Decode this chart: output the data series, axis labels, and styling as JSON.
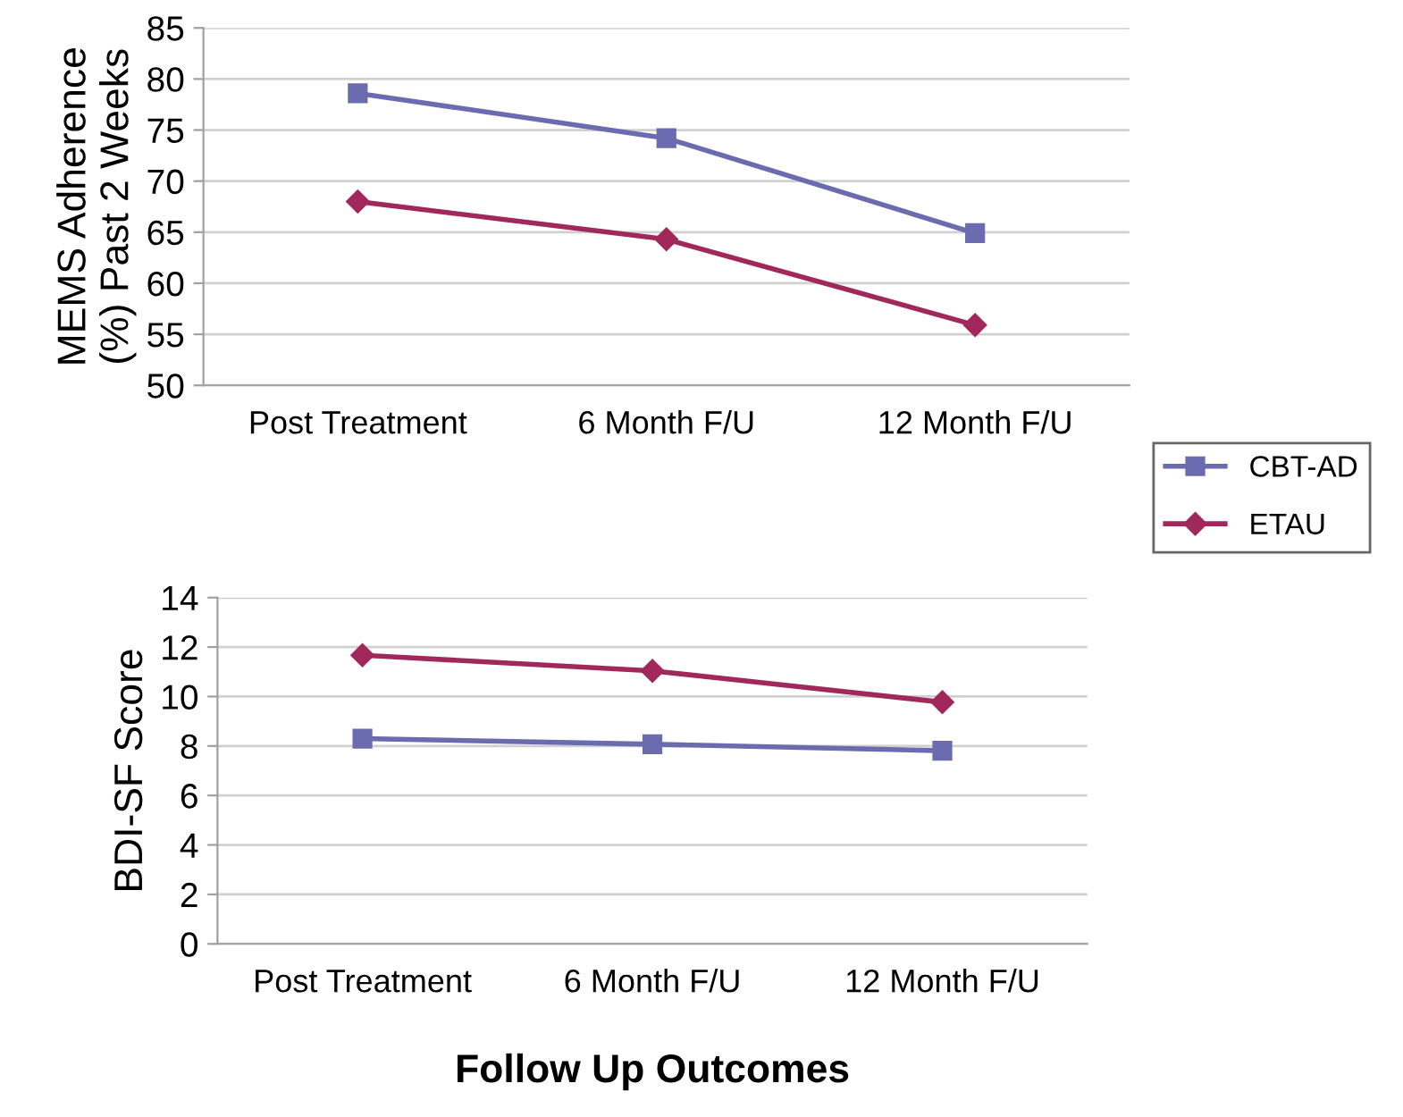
{
  "chart_data": [
    {
      "type": "line",
      "ylabel": "MEMS Adherence\n(%) Past 2 Weeks",
      "categories": [
        "Post Treatment",
        "6 Month F/U",
        "12 Month F/U"
      ],
      "series": [
        {
          "name": "CBT-AD",
          "color": "#6b6bb0",
          "marker": "square",
          "values": [
            78.6,
            74.2,
            64.9
          ]
        },
        {
          "name": "ETAU",
          "color": "#a0285a",
          "marker": "diamond",
          "values": [
            68.0,
            64.3,
            55.9
          ]
        }
      ],
      "ylim": [
        50,
        85
      ],
      "yticks": [
        50,
        55,
        60,
        65,
        70,
        75,
        80,
        85
      ],
      "grid": "y",
      "legend": "right"
    },
    {
      "type": "line",
      "ylabel": "BDI-SF Score",
      "xlabel": "Follow Up Outcomes",
      "categories": [
        "Post Treatment",
        "6 Month F/U",
        "12 Month F/U"
      ],
      "series": [
        {
          "color": "#a0285a",
          "marker": "diamond",
          "values": [
            11.67,
            11.04,
            9.77
          ]
        },
        {
          "color": "#6b6bb0",
          "marker": "square",
          "values": [
            8.3,
            8.07,
            7.81
          ]
        }
      ],
      "ylim": [
        0,
        14
      ],
      "yticks": [
        0,
        2,
        4,
        6,
        8,
        10,
        12,
        14
      ],
      "grid": "y"
    }
  ]
}
